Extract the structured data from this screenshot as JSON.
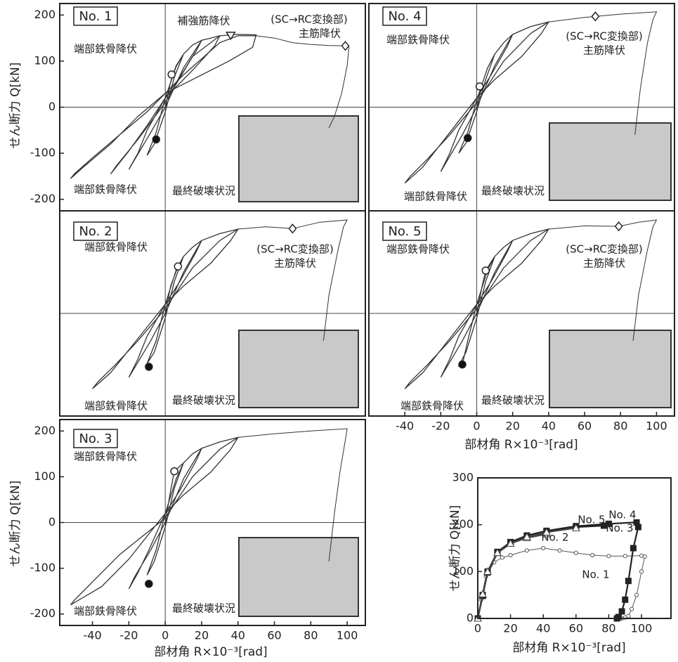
{
  "chart_data": [
    {
      "type": "hysteresis",
      "title": "No. 1",
      "ylabel": "せん断力 Q[kN]",
      "xlim": [
        -58,
        110
      ],
      "ylim": [
        -225,
        225
      ],
      "yticks": [
        -200,
        -100,
        0,
        100,
        200
      ],
      "series": [
        {
          "x": [
            0,
            3,
            6,
            10,
            6,
            0,
            -5,
            -10,
            -6,
            0,
            5,
            10
          ],
          "values": [
            0,
            55,
            90,
            115,
            88,
            20,
            -55,
            -105,
            -80,
            -10,
            65,
            115
          ]
        },
        {
          "x": [
            10,
            15,
            20,
            17,
            8,
            0,
            -10,
            -15,
            -20,
            -17,
            -8,
            0,
            10,
            20
          ],
          "values": [
            115,
            135,
            145,
            122,
            65,
            20,
            -50,
            -100,
            -135,
            -115,
            -55,
            0,
            85,
            145
          ]
        },
        {
          "x": [
            20,
            25,
            30,
            27,
            15,
            0,
            -10,
            -20,
            -30,
            -27,
            -15,
            0,
            15,
            30
          ],
          "values": [
            145,
            150,
            155,
            132,
            80,
            20,
            -40,
            -95,
            -145,
            -128,
            -70,
            10,
            110,
            155
          ]
        },
        {
          "x": [
            30,
            40,
            50,
            48,
            35,
            15,
            0,
            -15,
            -30,
            -45,
            -52,
            -50,
            -40,
            -25,
            -10,
            10,
            30,
            40,
            50
          ],
          "values": [
            155,
            158,
            157,
            130,
            100,
            60,
            30,
            -20,
            -80,
            -130,
            -155,
            -145,
            -110,
            -60,
            -10,
            70,
            140,
            155,
            155
          ]
        },
        {
          "x": [
            50,
            60,
            70,
            80,
            90,
            100,
            101,
            100,
            97,
            93,
            90
          ],
          "values": [
            155,
            150,
            140,
            136,
            134,
            133,
            130,
            90,
            30,
            -20,
            -45
          ]
        }
      ],
      "points": [
        {
          "x": 3.5,
          "y": 71,
          "marker": "open-circle"
        },
        {
          "x": -5,
          "y": -70,
          "marker": "filled-circle"
        },
        {
          "x": 36,
          "y": 155,
          "marker": "triangle"
        },
        {
          "x": 99,
          "y": 133,
          "marker": "diamond"
        }
      ],
      "annotations": [
        "補強筋降伏",
        "(SC→RC変換部)",
        "主筋降伏",
        "端部鉄骨降伏",
        "端部鉄骨降伏",
        "最終破壊状況"
      ]
    },
    {
      "type": "hysteresis",
      "title": "No. 4",
      "xlim": [
        -60,
        110
      ],
      "ylim": [
        -225,
        225
      ],
      "series": [
        {
          "x": [
            0,
            3,
            6,
            10,
            6,
            0,
            -5,
            -10,
            -6,
            0,
            5,
            10
          ],
          "values": [
            0,
            50,
            85,
            115,
            85,
            15,
            -55,
            -100,
            -78,
            -10,
            60,
            115
          ]
        },
        {
          "x": [
            10,
            15,
            20,
            17,
            8,
            0,
            -10,
            -15,
            -20,
            -17,
            -8,
            0,
            10,
            20
          ],
          "values": [
            115,
            140,
            158,
            132,
            70,
            20,
            -50,
            -100,
            -140,
            -120,
            -60,
            0,
            90,
            158
          ]
        },
        {
          "x": [
            20,
            30,
            40,
            36,
            25,
            10,
            0,
            -10,
            -20,
            -30,
            -40,
            -37,
            -28,
            -15,
            0,
            15,
            30,
            40
          ],
          "values": [
            158,
            175,
            185,
            160,
            110,
            60,
            20,
            -30,
            -80,
            -130,
            -165,
            -150,
            -115,
            -60,
            10,
            100,
            160,
            185
          ]
        },
        {
          "x": [
            40,
            60,
            66,
            80,
            100,
            98,
            95,
            91,
            88
          ],
          "values": [
            185,
            195,
            197,
            202,
            207,
            190,
            140,
            40,
            -60
          ]
        }
      ],
      "points": [
        {
          "x": 1.6,
          "y": 45,
          "marker": "open-circle"
        },
        {
          "x": -5,
          "y": -67,
          "marker": "filled-circle"
        },
        {
          "x": 66,
          "y": 197,
          "marker": "diamond"
        }
      ],
      "annotations": [
        "(SC→RC変換部)",
        "主筋降伏",
        "端部鉄骨降伏",
        "端部鉄骨降伏",
        "最終破壊状況"
      ]
    },
    {
      "type": "hysteresis",
      "title": "No. 2",
      "xlim": [
        -58,
        110
      ],
      "ylim": [
        -225,
        225
      ],
      "series": [
        {
          "x": [
            0,
            3,
            7,
            10,
            6,
            0,
            -5,
            -10,
            -6,
            0,
            5,
            10
          ],
          "values": [
            0,
            60,
            103,
            125,
            95,
            20,
            -60,
            -110,
            -85,
            -10,
            70,
            125
          ]
        },
        {
          "x": [
            10,
            15,
            20,
            17,
            8,
            0,
            -10,
            -15,
            -20,
            -17,
            -8,
            0,
            10,
            20
          ],
          "values": [
            125,
            145,
            160,
            135,
            70,
            20,
            -50,
            -100,
            -140,
            -120,
            -60,
            0,
            90,
            160
          ]
        },
        {
          "x": [
            20,
            30,
            40,
            36,
            25,
            10,
            0,
            -10,
            -20,
            -30,
            -40,
            -37,
            -28,
            -15,
            0,
            15,
            30,
            40
          ],
          "values": [
            160,
            175,
            185,
            160,
            110,
            60,
            20,
            -30,
            -80,
            -130,
            -165,
            -150,
            -115,
            -60,
            10,
            100,
            160,
            185
          ]
        },
        {
          "x": [
            40,
            55,
            70,
            85,
            100,
            98,
            95,
            90,
            87
          ],
          "values": [
            185,
            190,
            186,
            200,
            205,
            190,
            140,
            40,
            -60
          ]
        }
      ],
      "points": [
        {
          "x": 7,
          "y": 103,
          "marker": "open-circle"
        },
        {
          "x": -9,
          "y": -117,
          "marker": "filled-circle"
        },
        {
          "x": 70,
          "y": 186,
          "marker": "diamond"
        }
      ],
      "annotations": [
        "(SC→RC変換部)",
        "主筋降伏",
        "端部鉄骨降伏",
        "端部鉄骨降伏",
        "最終破壊状況"
      ]
    },
    {
      "type": "hysteresis",
      "title": "No. 5",
      "xlabel": "部材角 R×10⁻³[rad]",
      "xlim": [
        -60,
        110
      ],
      "ylim": [
        -225,
        225
      ],
      "xticks": [
        -40,
        -20,
        0,
        20,
        40,
        60,
        80,
        100
      ],
      "series": [
        {
          "x": [
            0,
            3,
            5,
            10,
            6,
            0,
            -5,
            -8,
            -10,
            -6,
            0,
            5,
            10
          ],
          "values": [
            0,
            60,
            94,
            125,
            95,
            20,
            -60,
            -112,
            -115,
            -85,
            -10,
            70,
            125
          ]
        },
        {
          "x": [
            10,
            15,
            20,
            17,
            8,
            0,
            -10,
            -15,
            -20,
            -17,
            -8,
            0,
            10,
            20
          ],
          "values": [
            125,
            145,
            160,
            135,
            70,
            20,
            -50,
            -100,
            -140,
            -120,
            -60,
            0,
            90,
            160
          ]
        },
        {
          "x": [
            20,
            30,
            40,
            36,
            25,
            10,
            0,
            -10,
            -20,
            -30,
            -40,
            -37,
            -28,
            -15,
            0,
            15,
            30,
            40
          ],
          "values": [
            160,
            175,
            185,
            160,
            110,
            60,
            20,
            -30,
            -80,
            -130,
            -165,
            -150,
            -115,
            -60,
            10,
            100,
            160,
            185
          ]
        },
        {
          "x": [
            40,
            60,
            79,
            90,
            100,
            98,
            95,
            90,
            87
          ],
          "values": [
            185,
            192,
            191,
            200,
            205,
            190,
            140,
            40,
            -60
          ]
        }
      ],
      "points": [
        {
          "x": 5,
          "y": 94,
          "marker": "open-circle"
        },
        {
          "x": -8,
          "y": -112,
          "marker": "filled-circle"
        },
        {
          "x": 79,
          "y": 191,
          "marker": "diamond"
        }
      ],
      "annotations": [
        "(SC→RC変換部)",
        "主筋降伏",
        "端部鉄骨降伏",
        "端部鉄骨降伏",
        "最終破壊状況"
      ]
    },
    {
      "type": "hysteresis",
      "title": "No. 3",
      "ylabel": "せん断力 Q[kN]",
      "xlabel": "部材角 R×10⁻³[rad]",
      "xlim": [
        -58,
        110
      ],
      "ylim": [
        -225,
        225
      ],
      "yticks": [
        -200,
        -100,
        0,
        100,
        200
      ],
      "xticks": [
        -40,
        -20,
        0,
        20,
        40,
        60,
        80,
        100
      ],
      "series": [
        {
          "x": [
            0,
            3,
            5,
            10,
            6,
            0,
            -5,
            -10,
            -6,
            0,
            5,
            10
          ],
          "values": [
            0,
            70,
            112,
            130,
            95,
            20,
            -60,
            -115,
            -85,
            -10,
            75,
            130
          ]
        },
        {
          "x": [
            10,
            15,
            20,
            17,
            8,
            0,
            -9,
            -15,
            -20,
            -17,
            -8,
            0,
            10,
            20
          ],
          "values": [
            130,
            150,
            162,
            135,
            70,
            20,
            -60,
            -110,
            -145,
            -120,
            -60,
            0,
            95,
            162
          ]
        },
        {
          "x": [
            20,
            30,
            40,
            36,
            25,
            10,
            0,
            -10,
            -20,
            -35,
            -52,
            -50,
            -40,
            -25,
            0,
            15,
            30,
            40
          ],
          "values": [
            162,
            176,
            186,
            160,
            110,
            60,
            20,
            -30,
            -80,
            -140,
            -180,
            -170,
            -130,
            -70,
            10,
            100,
            160,
            186
          ]
        },
        {
          "x": [
            40,
            60,
            80,
            100,
            99,
            96,
            93,
            90
          ],
          "values": [
            186,
            194,
            200,
            205,
            180,
            110,
            20,
            -85
          ]
        }
      ],
      "points": [
        {
          "x": 5,
          "y": 112,
          "marker": "open-circle"
        },
        {
          "x": -9,
          "y": -134,
          "marker": "filled-circle"
        }
      ],
      "annotations": [
        "端部鉄骨降伏",
        "端部鉄骨降伏",
        "最終破壊状況"
      ]
    },
    {
      "type": "line",
      "ylabel": "せん断力 Q[kN]",
      "xlabel": "部材角 R×10⁻³[rad]",
      "xlim": [
        0,
        118
      ],
      "ylim": [
        0,
        300
      ],
      "xticks": [
        0,
        20,
        40,
        60,
        80,
        100
      ],
      "yticks": [
        0,
        100,
        200,
        300
      ],
      "series": [
        {
          "name": "No. 1",
          "marker": "circle",
          "color": "#555",
          "x": [
            0,
            2,
            5,
            10,
            15,
            20,
            30,
            40,
            50,
            60,
            70,
            80,
            90,
            100,
            102,
            100,
            97,
            94,
            92,
            90,
            88
          ],
          "values": [
            0,
            40,
            90,
            120,
            130,
            135,
            145,
            150,
            145,
            140,
            135,
            133,
            133,
            134,
            132,
            100,
            50,
            20,
            5,
            2,
            0
          ]
        },
        {
          "name": "No. 2",
          "marker": "triangle",
          "color": "#444",
          "x": [
            0,
            3,
            6,
            12,
            20,
            30,
            42
          ],
          "values": [
            0,
            50,
            100,
            140,
            160,
            172,
            180
          ]
        },
        {
          "name": "No. 3",
          "marker": "square",
          "color": "#222",
          "x": [
            0,
            3,
            6,
            12,
            20,
            30,
            42,
            60,
            77
          ],
          "values": [
            0,
            48,
            98,
            140,
            162,
            175,
            185,
            195,
            198
          ]
        },
        {
          "name": "No. 4",
          "marker": "square",
          "color": "#222",
          "x": [
            0,
            3,
            6,
            12,
            20,
            30,
            42,
            60,
            80,
            97,
            98,
            95,
            92,
            90,
            88,
            86,
            85
          ],
          "values": [
            0,
            50,
            100,
            142,
            163,
            177,
            187,
            197,
            202,
            205,
            195,
            150,
            80,
            40,
            15,
            3,
            0
          ]
        },
        {
          "name": "No. 5",
          "marker": "triangle",
          "color": "#444",
          "x": [
            0,
            3,
            6,
            12,
            20,
            30,
            42,
            60
          ],
          "values": [
            0,
            52,
            100,
            140,
            160,
            174,
            184,
            193
          ]
        }
      ]
    }
  ]
}
